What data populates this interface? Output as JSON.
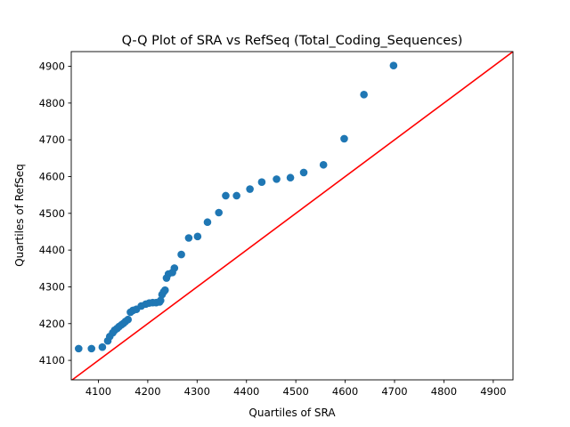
{
  "chart_data": {
    "type": "scatter",
    "title": "Q-Q Plot of SRA vs RefSeq (Total_Coding_Sequences)",
    "xlabel": "Quartiles of SRA",
    "ylabel": "Quartiles of RefSeq",
    "xlim": [
      4045,
      4940
    ],
    "ylim": [
      4047,
      4940
    ],
    "xticks": [
      4100,
      4200,
      4300,
      4400,
      4500,
      4600,
      4700,
      4800,
      4900
    ],
    "yticks": [
      4100,
      4200,
      4300,
      4400,
      4500,
      4600,
      4700,
      4800,
      4900
    ],
    "grid": false,
    "points": [
      {
        "x": 4060,
        "y": 4132
      },
      {
        "x": 4086,
        "y": 4132
      },
      {
        "x": 4108,
        "y": 4136
      },
      {
        "x": 4119,
        "y": 4153
      },
      {
        "x": 4123,
        "y": 4165
      },
      {
        "x": 4129,
        "y": 4175
      },
      {
        "x": 4133,
        "y": 4182
      },
      {
        "x": 4138,
        "y": 4187
      },
      {
        "x": 4142,
        "y": 4192
      },
      {
        "x": 4147,
        "y": 4197
      },
      {
        "x": 4151,
        "y": 4201
      },
      {
        "x": 4155,
        "y": 4206
      },
      {
        "x": 4160,
        "y": 4211
      },
      {
        "x": 4165,
        "y": 4231
      },
      {
        "x": 4170,
        "y": 4236
      },
      {
        "x": 4177,
        "y": 4239
      },
      {
        "x": 4187,
        "y": 4248
      },
      {
        "x": 4196,
        "y": 4253
      },
      {
        "x": 4203,
        "y": 4256
      },
      {
        "x": 4210,
        "y": 4257
      },
      {
        "x": 4217,
        "y": 4257
      },
      {
        "x": 4224,
        "y": 4259
      },
      {
        "x": 4226,
        "y": 4263
      },
      {
        "x": 4229,
        "y": 4279
      },
      {
        "x": 4232,
        "y": 4286
      },
      {
        "x": 4235,
        "y": 4291
      },
      {
        "x": 4238,
        "y": 4324
      },
      {
        "x": 4242,
        "y": 4335
      },
      {
        "x": 4250,
        "y": 4339
      },
      {
        "x": 4254,
        "y": 4351
      },
      {
        "x": 4268,
        "y": 4388
      },
      {
        "x": 4283,
        "y": 4433
      },
      {
        "x": 4301,
        "y": 4437
      },
      {
        "x": 4321,
        "y": 4476
      },
      {
        "x": 4344,
        "y": 4502
      },
      {
        "x": 4358,
        "y": 4548
      },
      {
        "x": 4380,
        "y": 4548
      },
      {
        "x": 4407,
        "y": 4566
      },
      {
        "x": 4431,
        "y": 4585
      },
      {
        "x": 4461,
        "y": 4593
      },
      {
        "x": 4489,
        "y": 4597
      },
      {
        "x": 4516,
        "y": 4611
      },
      {
        "x": 4556,
        "y": 4632
      },
      {
        "x": 4598,
        "y": 4703
      },
      {
        "x": 4638,
        "y": 4823
      },
      {
        "x": 4698,
        "y": 4902
      }
    ],
    "reference_line": {
      "slope": 1,
      "intercept": 0
    },
    "colors": {
      "points": "#1f77b4",
      "reference_line": "#ff0000",
      "axes": "#000000"
    }
  }
}
